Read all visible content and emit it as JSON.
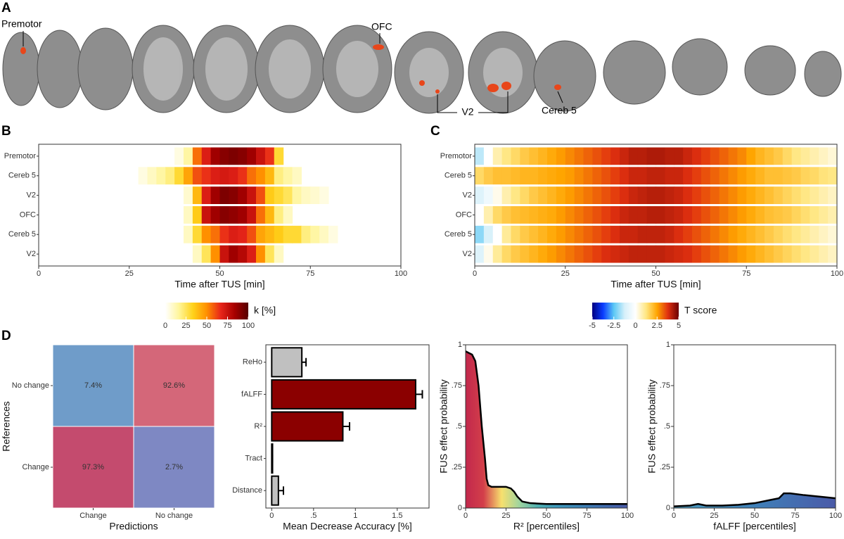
{
  "panel_labels": [
    "A",
    "B",
    "C",
    "D"
  ],
  "panel_a": {
    "annotations": [
      "Premotor",
      "OFC",
      "V2",
      "Cereb 5"
    ]
  },
  "chart_data": [
    {
      "type": "heatmap",
      "categories": [
        "Premotor",
        "Cereb 5",
        "V2",
        "OFC",
        "Cereb 5",
        "V2"
      ],
      "bins": [
        0,
        2.5,
        5,
        7.5,
        10,
        12.5,
        15,
        17.5,
        20,
        22.5,
        25,
        27.5,
        30,
        32.5,
        35,
        37.5,
        40,
        42.5,
        45,
        47.5,
        50,
        52.5,
        55,
        57.5,
        60,
        62.5,
        65,
        67.5,
        70,
        72.5,
        75,
        77.5,
        80,
        82.5,
        85,
        87.5,
        90,
        92.5,
        95,
        97.5,
        100
      ],
      "values": [
        [
          null,
          null,
          null,
          null,
          null,
          null,
          null,
          null,
          null,
          null,
          null,
          null,
          null,
          null,
          null,
          5,
          15,
          55,
          70,
          85,
          90,
          92,
          90,
          85,
          75,
          65,
          30,
          null,
          null,
          null,
          null,
          null,
          null,
          null,
          null,
          null,
          null,
          null,
          null,
          null
        ],
        [
          null,
          null,
          null,
          null,
          null,
          null,
          null,
          null,
          null,
          null,
          null,
          5,
          10,
          15,
          20,
          30,
          45,
          60,
          65,
          70,
          72,
          70,
          65,
          55,
          50,
          40,
          20,
          15,
          10,
          null,
          null,
          null,
          null,
          null,
          null,
          null,
          null,
          null,
          null,
          null
        ],
        [
          null,
          null,
          null,
          null,
          null,
          null,
          null,
          null,
          null,
          null,
          null,
          null,
          null,
          null,
          null,
          null,
          8,
          40,
          70,
          85,
          92,
          90,
          85,
          75,
          60,
          35,
          30,
          25,
          15,
          10,
          8,
          5,
          null,
          null,
          null,
          null,
          null,
          null,
          null,
          null
        ],
        [
          null,
          null,
          null,
          null,
          null,
          null,
          null,
          null,
          null,
          null,
          null,
          null,
          null,
          null,
          null,
          null,
          10,
          35,
          75,
          85,
          90,
          88,
          85,
          75,
          55,
          40,
          20,
          10,
          null,
          null,
          null,
          null,
          null,
          null,
          null,
          null,
          null,
          null,
          null,
          null
        ],
        [
          null,
          null,
          null,
          null,
          null,
          null,
          null,
          null,
          null,
          null,
          null,
          null,
          null,
          null,
          null,
          null,
          10,
          30,
          50,
          55,
          65,
          70,
          68,
          60,
          45,
          40,
          35,
          30,
          30,
          20,
          15,
          10,
          5,
          null,
          null,
          null,
          null,
          null,
          null,
          null
        ],
        [
          null,
          null,
          null,
          null,
          null,
          null,
          null,
          null,
          null,
          null,
          null,
          null,
          null,
          null,
          null,
          null,
          null,
          10,
          25,
          50,
          75,
          85,
          80,
          70,
          50,
          25,
          10,
          null,
          null,
          null,
          null,
          null,
          null,
          null,
          null,
          null,
          null,
          null,
          null,
          null
        ]
      ],
      "xlim": [
        0,
        100
      ],
      "xticks": [
        0,
        25,
        50,
        75,
        100
      ],
      "xlabel": "Time after TUS [min]",
      "colorbar": {
        "title": "k [%]",
        "lim": [
          0,
          100
        ],
        "ticks": [
          0,
          25,
          50,
          75,
          100
        ],
        "colors": [
          "#ffffff",
          "#fff59a",
          "#ffd21a",
          "#ff9000",
          "#e8261a",
          "#a80000",
          "#560000"
        ]
      }
    },
    {
      "type": "heatmap",
      "categories": [
        "Premotor",
        "Cereb 5",
        "V2",
        "OFC",
        "Cereb 5",
        "V2"
      ],
      "bins": [
        0,
        2.5,
        5,
        7.5,
        10,
        12.5,
        15,
        17.5,
        20,
        22.5,
        25,
        27.5,
        30,
        32.5,
        35,
        37.5,
        40,
        42.5,
        45,
        47.5,
        50,
        52.5,
        55,
        57.5,
        60,
        62.5,
        65,
        67.5,
        70,
        72.5,
        75,
        77.5,
        80,
        82.5,
        85,
        87.5,
        90,
        92.5,
        95,
        97.5,
        100
      ],
      "values": [
        [
          -1.5,
          0,
          0.8,
          1.2,
          1.5,
          1.8,
          2,
          2.2,
          2.4,
          2.6,
          2.8,
          3,
          3.2,
          3.4,
          3.6,
          3.8,
          4,
          4.2,
          4.2,
          4.3,
          4.3,
          4.2,
          4.2,
          4,
          3.8,
          3.6,
          3.4,
          3.2,
          3,
          2.8,
          2.5,
          2.2,
          2,
          1.8,
          1.5,
          1.2,
          1,
          0.8,
          0.6,
          0.4
        ],
        [
          1.5,
          1.8,
          2,
          2,
          2.1,
          2.2,
          2.2,
          2.3,
          2.4,
          2.5,
          2.6,
          2.8,
          3,
          3.2,
          3.4,
          3.6,
          3.8,
          4,
          4,
          4.1,
          4.1,
          4,
          4,
          3.8,
          3.6,
          3.4,
          3.2,
          3,
          2.8,
          2.6,
          2.4,
          2.2,
          2,
          2,
          1.9,
          1.8,
          1.6,
          1.5,
          1.3,
          1.2
        ],
        [
          -1,
          -0.5,
          0.2,
          0.8,
          1.2,
          1.5,
          1.8,
          2,
          2.2,
          2.4,
          2.6,
          2.8,
          3,
          3.2,
          3.4,
          3.6,
          3.8,
          4,
          4.1,
          4.2,
          4.2,
          4.1,
          4,
          3.8,
          3.6,
          3.4,
          3.2,
          3,
          2.8,
          2.6,
          2.4,
          2.2,
          2,
          1.8,
          1.6,
          1.4,
          1.2,
          1,
          0.8,
          0.6
        ],
        [
          0,
          0.8,
          1.5,
          1.8,
          2,
          2.1,
          2.2,
          2.3,
          2.4,
          2.6,
          2.8,
          3,
          3.2,
          3.4,
          3.6,
          3.8,
          4,
          4.1,
          4.1,
          4.2,
          4.2,
          4.1,
          4,
          3.8,
          3.6,
          3.4,
          3.2,
          3,
          2.8,
          2.6,
          2.4,
          2.2,
          2,
          1.9,
          1.8,
          1.6,
          1.4,
          1.2,
          1,
          0.8
        ],
        [
          -2,
          -1.2,
          0,
          1,
          1.5,
          1.8,
          2,
          2.2,
          2.4,
          2.6,
          2.8,
          3,
          3.2,
          3.4,
          3.6,
          3.8,
          4,
          4,
          4.1,
          4.1,
          4.1,
          4,
          3.8,
          3.6,
          3.4,
          3.2,
          3,
          2.8,
          2.6,
          2.4,
          2.2,
          2,
          1.8,
          1.6,
          1.4,
          1.2,
          1,
          0.8,
          0.6,
          0.4
        ],
        [
          -1,
          0.2,
          1,
          1.5,
          1.8,
          2,
          2.2,
          2.4,
          2.6,
          2.8,
          3,
          3.2,
          3.4,
          3.6,
          3.8,
          3.9,
          4,
          4.1,
          4.1,
          4.1,
          4.1,
          4,
          3.9,
          3.8,
          3.6,
          3.4,
          3.2,
          3,
          2.8,
          2.6,
          2.4,
          2.2,
          2,
          1.8,
          1.6,
          1.4,
          1.2,
          1,
          0.8,
          0.6
        ]
      ],
      "xlim": [
        0,
        100
      ],
      "xticks": [
        0,
        25,
        50,
        75,
        100
      ],
      "xlabel": "Time after TUS [min]",
      "colorbar": {
        "title": "T score",
        "lim": [
          -5,
          5
        ],
        "ticks": [
          -5,
          -2.5,
          0,
          2.5,
          5
        ],
        "colors": [
          "#000080",
          "#0a3cff",
          "#5bc8f5",
          "#d6f0fa",
          "#ffffff",
          "#ffe680",
          "#ffa500",
          "#e03010",
          "#6b0000"
        ]
      }
    },
    {
      "type": "confusion",
      "x_categories": [
        "Change",
        "No change"
      ],
      "y_categories": [
        "No change",
        "Change"
      ],
      "values": [
        [
          7.4,
          92.6
        ],
        [
          97.3,
          2.7
        ]
      ],
      "value_labels": [
        [
          "7.4%",
          "92.6%"
        ],
        [
          "97.3%",
          "2.7%"
        ]
      ],
      "colors": [
        [
          "#6f9cc9",
          "#d46779"
        ],
        [
          "#c44b6e",
          "#7e88c3"
        ]
      ],
      "xlabel": "Predictions",
      "ylabel": "References"
    },
    {
      "type": "hbar",
      "categories": [
        "ReHo",
        "fALFF",
        "R²",
        "Tract",
        "Distance"
      ],
      "values": [
        0.36,
        1.72,
        0.85,
        0.01,
        0.08
      ],
      "errors": [
        0.05,
        0.08,
        0.08,
        0,
        0.06
      ],
      "colors": [
        "#c0c0c0",
        "#8b0000",
        "#8b0000",
        "#c0c0c0",
        "#c0c0c0"
      ],
      "xlim": [
        -0.07,
        1.88
      ],
      "xticks": [
        0,
        {
          "value": 0.5,
          "label": ".5"
        },
        1,
        1.5
      ],
      "xlabel": "Mean Decrease Accuracy [%]"
    },
    {
      "type": "area",
      "x": [
        0,
        2,
        4,
        6,
        8,
        10,
        12,
        13,
        14,
        16,
        20,
        25,
        28,
        30,
        32,
        35,
        40,
        50,
        60,
        70,
        80,
        90,
        100
      ],
      "values": [
        0.96,
        0.95,
        0.94,
        0.9,
        0.75,
        0.5,
        0.3,
        0.18,
        0.14,
        0.13,
        0.13,
        0.13,
        0.12,
        0.1,
        0.07,
        0.04,
        0.03,
        0.025,
        0.025,
        0.025,
        0.025,
        0.025,
        0.025
      ],
      "xlim": [
        0,
        100
      ],
      "ylim": [
        0,
        1
      ],
      "xticks": [
        0,
        25,
        50,
        75,
        100
      ],
      "yticks": [
        0,
        {
          "value": 0.25,
          "label": ".25"
        },
        {
          "value": 0.5,
          "label": ".5"
        },
        {
          "value": 0.75,
          "label": ".75"
        },
        1
      ],
      "xlabel": "R² [percentiles]",
      "ylabel": "FUS effect probability",
      "fill_colors": [
        "#c2284c",
        "#d33f4a",
        "#f7e06e",
        "#9fd49f",
        "#4fb0b0",
        "#3f9bbd",
        "#3d8ab8",
        "#3f79b3",
        "#4268ad",
        "#4a5aa8"
      ],
      "line_color": "#000000"
    },
    {
      "type": "area",
      "x": [
        0,
        10,
        15,
        20,
        30,
        40,
        50,
        60,
        65,
        68,
        72,
        80,
        90,
        100
      ],
      "values": [
        0.01,
        0.015,
        0.025,
        0.015,
        0.015,
        0.02,
        0.03,
        0.05,
        0.06,
        0.09,
        0.09,
        0.08,
        0.07,
        0.06
      ],
      "xlim": [
        0,
        100
      ],
      "ylim": [
        0,
        1
      ],
      "xticks": [
        0,
        25,
        50,
        75,
        100
      ],
      "yticks": [
        0,
        {
          "value": 0.25,
          "label": ".25"
        },
        {
          "value": 0.5,
          "label": ".5"
        },
        {
          "value": 0.75,
          "label": ".75"
        },
        1
      ],
      "xlabel": "fALFF [percentiles]",
      "ylabel": "FUS effect probability",
      "fill_colors": [
        "#4a9bbd",
        "#3f80b8",
        "#4a5aa8"
      ],
      "line_color": "#000000"
    }
  ]
}
